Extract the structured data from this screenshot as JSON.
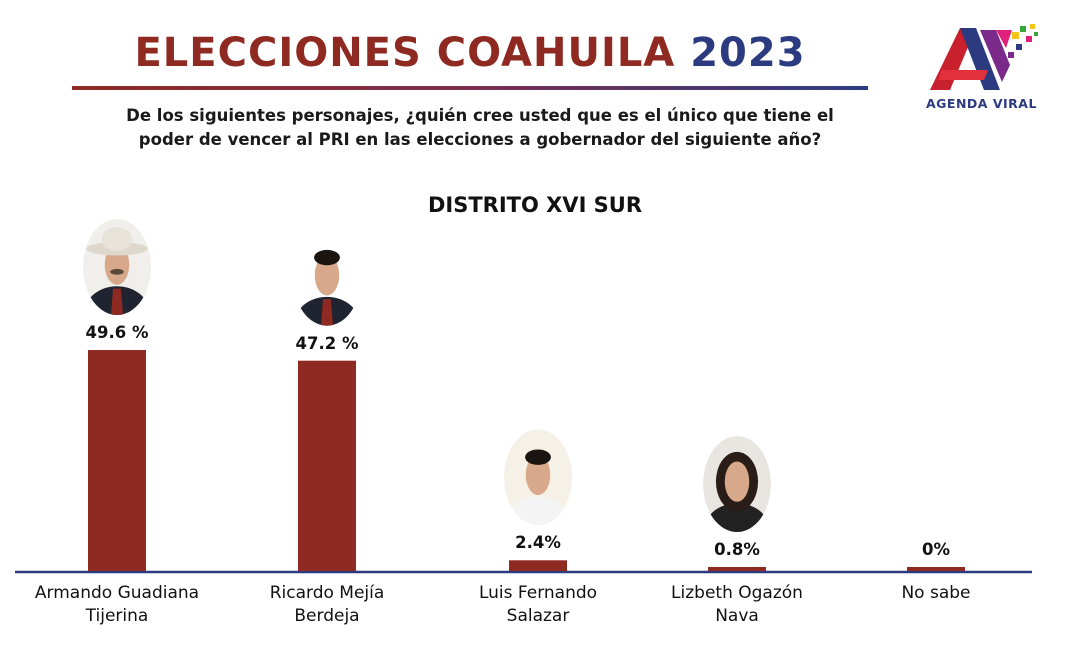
{
  "header": {
    "title_red": "ELECCIONES COAHUILA",
    "title_blue": "2023",
    "question_line1": "De los siguientes personajes, ¿quién cree usted que es el único que  tiene el",
    "question_line2": "poder de vencer al PRI en las elecciones a gobernador del  siguiente año?"
  },
  "logo": {
    "text": "AGENDA VIRAL",
    "icon": "agenda-viral-logo"
  },
  "colors": {
    "bar": "#8f2a22",
    "title_red": "#8f2a22",
    "title_blue": "#2c3b80",
    "axis": "#2c3b80"
  },
  "chart_data": {
    "type": "bar",
    "title": "DISTRITO XVI SUR",
    "xlabel": "",
    "ylabel": "",
    "ylim": [
      0,
      55
    ],
    "grid": false,
    "categories": [
      "Armando Guadiana Tijerina",
      "Ricardo Mejía Berdeja",
      "Luis Fernando Salazar",
      "Lizbeth Ogazón Nava",
      "No sabe"
    ],
    "category_lines": [
      [
        "Armando Guadiana",
        "Tijerina"
      ],
      [
        "Ricardo Mejía",
        "Berdeja"
      ],
      [
        "Luis Fernando",
        "Salazar"
      ],
      [
        "Lizbeth Ogazón",
        "Nava"
      ],
      [
        "No sabe",
        ""
      ]
    ],
    "values": [
      49.6,
      47.2,
      2.4,
      0.8,
      0
    ],
    "value_labels": [
      "49.6 %",
      "47.2 %",
      "2.4%",
      "0.8%",
      "0%"
    ],
    "photos": [
      "portrait-cowboy-hat",
      "portrait-suit-man",
      "portrait-smiling-man",
      "portrait-woman",
      ""
    ]
  }
}
